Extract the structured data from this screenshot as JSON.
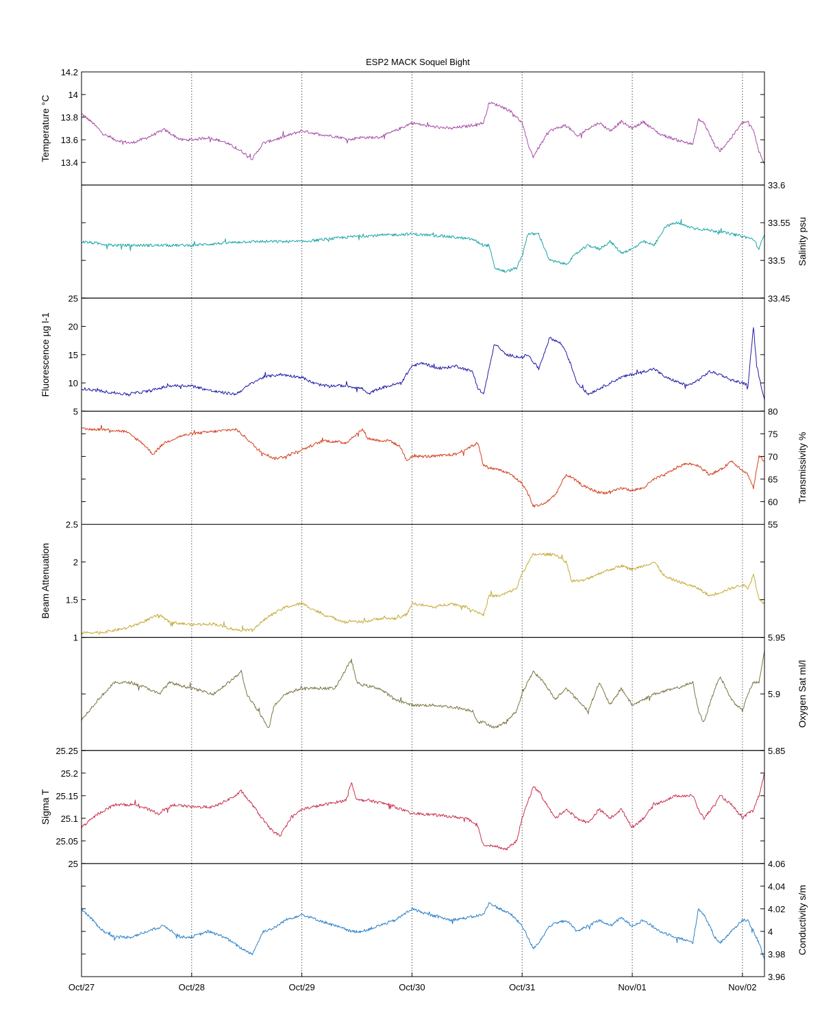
{
  "title": "ESP2 MACK  Soquel Bight",
  "x_tick_labels": [
    "Oct/27",
    "Oct/28",
    "Oct/29",
    "Oct/30",
    "Oct/31",
    "Nov/01",
    "Nov/02"
  ],
  "chart_data": [
    {
      "type": "line",
      "side": "left",
      "color": "#a64ca6",
      "ylabel": "Temperature °C",
      "ylim": [
        13.2,
        14.2
      ],
      "yticks": [
        13.4,
        13.6,
        13.8,
        14,
        14.2
      ],
      "ytick_labels": [
        "13.4",
        "13.6",
        "13.8",
        "14",
        "14.2"
      ],
      "series": [
        {
          "x_days": [
            0,
            0.1,
            0.2,
            0.3,
            0.45,
            0.6,
            0.75,
            0.9,
            1.0,
            1.15,
            1.3,
            1.45,
            1.55,
            1.65,
            1.75,
            1.85,
            2.0,
            2.15,
            2.3,
            2.45,
            2.5,
            2.55,
            2.7,
            2.85,
            3.0,
            3.15,
            3.35,
            3.5,
            3.65,
            3.7,
            3.8,
            3.9,
            4.0,
            4.05,
            4.1,
            4.15,
            4.25,
            4.4,
            4.5,
            4.6,
            4.7,
            4.8,
            4.9,
            5.0,
            5.1,
            5.25,
            5.4,
            5.55,
            5.6,
            5.65,
            5.75,
            5.8,
            5.9,
            6.0,
            6.05,
            6.1,
            6.15,
            6.2
          ],
          "values": [
            13.83,
            13.75,
            13.65,
            13.6,
            13.57,
            13.62,
            13.69,
            13.6,
            13.6,
            13.62,
            13.58,
            13.5,
            13.43,
            13.57,
            13.6,
            13.63,
            13.68,
            13.65,
            13.63,
            13.6,
            13.62,
            13.62,
            13.62,
            13.68,
            13.75,
            13.72,
            13.7,
            13.72,
            13.75,
            13.93,
            13.9,
            13.85,
            13.75,
            13.57,
            13.45,
            13.53,
            13.68,
            13.73,
            13.63,
            13.7,
            13.75,
            13.68,
            13.76,
            13.7,
            13.76,
            13.65,
            13.6,
            13.56,
            13.78,
            13.75,
            13.55,
            13.5,
            13.62,
            13.75,
            13.76,
            13.68,
            13.5,
            13.38
          ]
        }
      ]
    },
    {
      "type": "line",
      "side": "right",
      "color": "#1aa5a5",
      "ylabel": "Salinity psu",
      "ylim": [
        33.45,
        33.6
      ],
      "yticks": [
        33.45,
        33.5,
        33.55,
        33.6
      ],
      "ytick_labels": [
        "33.45",
        "33.5",
        "33.55",
        "33.6"
      ],
      "series": [
        {
          "x_days": [
            0,
            0.3,
            0.6,
            1.0,
            1.5,
            2.0,
            2.5,
            3.0,
            3.3,
            3.55,
            3.65,
            3.7,
            3.75,
            3.85,
            3.95,
            4.0,
            4.05,
            4.15,
            4.25,
            4.4,
            4.5,
            4.6,
            4.7,
            4.8,
            4.9,
            5.0,
            5.1,
            5.2,
            5.3,
            5.4,
            5.5,
            5.6,
            5.7,
            5.8,
            5.9,
            6.0,
            6.1,
            6.15,
            6.2
          ],
          "values": [
            33.525,
            33.52,
            33.52,
            33.52,
            33.525,
            33.525,
            33.532,
            33.535,
            33.532,
            33.528,
            33.52,
            33.52,
            33.49,
            33.485,
            33.49,
            33.505,
            33.535,
            33.535,
            33.5,
            33.495,
            33.51,
            33.52,
            33.515,
            33.525,
            33.51,
            33.515,
            33.525,
            33.52,
            33.545,
            33.55,
            33.545,
            33.542,
            33.54,
            33.538,
            33.535,
            33.532,
            33.528,
            33.515,
            33.535
          ]
        }
      ]
    },
    {
      "type": "line",
      "side": "left",
      "color": "#1f1aa6",
      "ylabel": "Fluorescence µg l-1",
      "ylim": [
        5,
        25
      ],
      "yticks": [
        5,
        10,
        15,
        20,
        25
      ],
      "ytick_labels": [
        "5",
        "10",
        "15",
        "20",
        "25"
      ],
      "series": [
        {
          "x_days": [
            0,
            0.2,
            0.4,
            0.6,
            0.8,
            1.0,
            1.2,
            1.4,
            1.55,
            1.65,
            1.8,
            2.0,
            2.1,
            2.2,
            2.4,
            2.55,
            2.6,
            2.7,
            2.8,
            2.9,
            3.0,
            3.1,
            3.25,
            3.4,
            3.55,
            3.6,
            3.65,
            3.75,
            3.85,
            4.0,
            4.05,
            4.15,
            4.25,
            4.35,
            4.4,
            4.5,
            4.6,
            4.7,
            4.8,
            4.9,
            5.0,
            5.1,
            5.2,
            5.3,
            5.5,
            5.6,
            5.7,
            5.8,
            5.9,
            6.0,
            6.05,
            6.1,
            6.13,
            6.2
          ],
          "values": [
            9,
            8.5,
            8,
            8.5,
            9.5,
            9.5,
            8.5,
            8,
            10,
            11,
            11.5,
            11,
            10,
            9.5,
            9.5,
            9,
            8,
            9,
            9.5,
            10,
            13,
            13.5,
            12.5,
            13,
            12,
            9,
            8,
            17,
            15,
            14.5,
            15,
            12.5,
            18,
            17,
            15.5,
            10,
            8,
            9,
            10,
            11,
            11.5,
            12,
            12.5,
            11,
            9.5,
            10.5,
            12,
            11.5,
            10.5,
            10,
            9.5,
            20,
            13,
            7
          ]
        }
      ]
    },
    {
      "type": "line",
      "side": "right",
      "color": "#d23f1c",
      "ylabel": "Transmissivity %",
      "ylim": [
        55,
        80
      ],
      "yticks": [
        55,
        60,
        65,
        70,
        75,
        80
      ],
      "ytick_labels": [
        "55",
        "60",
        "65",
        "70",
        "75",
        "80"
      ],
      "series": [
        {
          "x_days": [
            0,
            0.2,
            0.4,
            0.55,
            0.65,
            0.75,
            0.9,
            1.0,
            1.2,
            1.4,
            1.5,
            1.6,
            1.75,
            1.85,
            1.95,
            2.05,
            2.2,
            2.4,
            2.55,
            2.6,
            2.7,
            2.8,
            2.9,
            2.95,
            3.0,
            3.1,
            3.2,
            3.4,
            3.6,
            3.65,
            3.7,
            3.8,
            3.9,
            4.0,
            4.05,
            4.1,
            4.2,
            4.3,
            4.4,
            4.5,
            4.55,
            4.6,
            4.7,
            4.8,
            4.9,
            5.0,
            5.1,
            5.2,
            5.3,
            5.4,
            5.5,
            5.6,
            5.7,
            5.8,
            5.9,
            6.0,
            6.05,
            6.1,
            6.15,
            6.2
          ],
          "values": [
            76,
            76,
            75.5,
            73,
            70.5,
            73,
            74.5,
            75,
            75.5,
            76,
            74,
            71.5,
            69.5,
            70,
            71,
            72,
            73.5,
            73,
            76,
            74,
            73.5,
            73.5,
            72,
            69,
            70,
            70,
            70,
            70.5,
            73,
            68,
            67.5,
            67,
            66,
            64,
            62,
            59,
            59.5,
            61.5,
            66,
            64.5,
            63.5,
            63,
            62,
            62,
            63,
            62.5,
            63,
            65,
            66,
            67.5,
            68.5,
            68,
            66,
            67,
            69,
            67,
            66,
            63,
            70,
            69
          ]
        }
      ]
    },
    {
      "type": "line",
      "side": "left",
      "color": "#c4aa32",
      "ylabel": "Beam Attenuation",
      "ylim": [
        1,
        2.5
      ],
      "yticks": [
        1,
        1.5,
        2,
        2.5
      ],
      "ytick_labels": [
        "1",
        "1.5",
        "2",
        "2.5"
      ],
      "series": [
        {
          "x_days": [
            0,
            0.2,
            0.4,
            0.55,
            0.7,
            0.8,
            1.0,
            1.2,
            1.4,
            1.55,
            1.7,
            1.85,
            2.0,
            2.2,
            2.4,
            2.45,
            2.55,
            2.7,
            2.85,
            2.95,
            3.0,
            3.2,
            3.35,
            3.5,
            3.65,
            3.7,
            3.8,
            3.95,
            4.0,
            4.1,
            4.2,
            4.3,
            4.4,
            4.45,
            4.55,
            4.7,
            4.8,
            4.9,
            5.0,
            5.1,
            5.2,
            5.3,
            5.4,
            5.5,
            5.6,
            5.7,
            5.8,
            5.9,
            6.0,
            6.05,
            6.1,
            6.15,
            6.2
          ],
          "values": [
            1.06,
            1.07,
            1.12,
            1.2,
            1.3,
            1.2,
            1.17,
            1.18,
            1.1,
            1.1,
            1.28,
            1.4,
            1.45,
            1.3,
            1.2,
            1.22,
            1.2,
            1.25,
            1.25,
            1.3,
            1.45,
            1.4,
            1.45,
            1.4,
            1.3,
            1.55,
            1.55,
            1.65,
            1.85,
            2.1,
            2.1,
            2.1,
            2.0,
            1.75,
            1.75,
            1.85,
            1.9,
            1.95,
            1.9,
            1.95,
            2.0,
            1.8,
            1.75,
            1.7,
            1.65,
            1.55,
            1.6,
            1.65,
            1.7,
            1.65,
            1.85,
            1.5,
            1.45
          ]
        }
      ]
    },
    {
      "type": "line",
      "side": "right",
      "color": "#7a7440",
      "ylabel": "Oxygen Sat ml/l",
      "ylim": [
        5.85,
        5.95
      ],
      "yticks": [
        5.85,
        5.9,
        5.95
      ],
      "ytick_labels": [
        "5.85",
        "5.9",
        "5.95"
      ],
      "series": [
        {
          "x_days": [
            0,
            0.15,
            0.3,
            0.45,
            0.6,
            0.7,
            0.8,
            1.0,
            1.2,
            1.4,
            1.45,
            1.5,
            1.7,
            1.75,
            1.85,
            2.0,
            2.1,
            2.3,
            2.45,
            2.5,
            2.55,
            2.7,
            2.85,
            3.0,
            3.1,
            3.2,
            3.4,
            3.55,
            3.6,
            3.65,
            3.75,
            3.85,
            3.95,
            4.0,
            4.1,
            4.15,
            4.2,
            4.3,
            4.4,
            4.5,
            4.6,
            4.7,
            4.8,
            4.9,
            5.0,
            5.1,
            5.2,
            5.4,
            5.55,
            5.6,
            5.65,
            5.75,
            5.8,
            5.9,
            6.0,
            6.05,
            6.1,
            6.15,
            6.2
          ],
          "values": [
            5.877,
            5.895,
            5.91,
            5.91,
            5.905,
            5.9,
            5.91,
            5.905,
            5.9,
            5.915,
            5.92,
            5.9,
            5.87,
            5.89,
            5.9,
            5.905,
            5.905,
            5.905,
            5.93,
            5.91,
            5.908,
            5.905,
            5.895,
            5.89,
            5.89,
            5.89,
            5.888,
            5.885,
            5.875,
            5.875,
            5.87,
            5.875,
            5.885,
            5.9,
            5.92,
            5.915,
            5.91,
            5.895,
            5.905,
            5.895,
            5.885,
            5.91,
            5.89,
            5.905,
            5.89,
            5.895,
            5.9,
            5.905,
            5.91,
            5.885,
            5.875,
            5.905,
            5.915,
            5.895,
            5.885,
            5.9,
            5.91,
            5.91,
            5.938
          ]
        }
      ]
    },
    {
      "type": "line",
      "side": "left",
      "color": "#c8304d",
      "ylabel": "Sigma T",
      "ylim": [
        25,
        25.25
      ],
      "yticks": [
        25,
        25.05,
        25.1,
        25.15,
        25.2,
        25.25
      ],
      "ytick_labels": [
        "25",
        "25.05",
        "25.1",
        "25.15",
        "25.2",
        "25.25"
      ],
      "series": [
        {
          "x_days": [
            0,
            0.15,
            0.3,
            0.5,
            0.7,
            0.75,
            0.85,
            1.0,
            1.2,
            1.4,
            1.45,
            1.55,
            1.7,
            1.8,
            1.9,
            2.0,
            2.2,
            2.4,
            2.45,
            2.5,
            2.6,
            2.8,
            3.0,
            3.1,
            3.3,
            3.5,
            3.6,
            3.65,
            3.75,
            3.85,
            3.95,
            4.0,
            4.1,
            4.15,
            4.2,
            4.3,
            4.4,
            4.5,
            4.6,
            4.7,
            4.8,
            4.9,
            5.0,
            5.1,
            5.2,
            5.4,
            5.55,
            5.6,
            5.65,
            5.75,
            5.8,
            5.9,
            6.0,
            6.05,
            6.1,
            6.15,
            6.2
          ],
          "values": [
            25.08,
            25.11,
            25.13,
            25.13,
            25.11,
            25.12,
            25.13,
            25.125,
            25.125,
            25.15,
            25.16,
            25.13,
            25.08,
            25.06,
            25.1,
            25.12,
            25.13,
            25.14,
            25.18,
            25.14,
            25.14,
            25.13,
            25.11,
            25.11,
            25.105,
            25.1,
            25.08,
            25.04,
            25.04,
            25.03,
            25.05,
            25.1,
            25.17,
            25.16,
            25.14,
            25.1,
            25.12,
            25.1,
            25.09,
            25.12,
            25.1,
            25.12,
            25.08,
            25.1,
            25.13,
            25.15,
            25.15,
            25.12,
            25.1,
            25.13,
            25.15,
            25.13,
            25.1,
            25.11,
            25.12,
            25.15,
            25.2
          ]
        }
      ]
    },
    {
      "type": "line",
      "side": "right",
      "color": "#2a80c8",
      "ylabel": "Conductivity s/m",
      "ylim": [
        3.96,
        4.06
      ],
      "yticks": [
        3.96,
        3.98,
        4,
        4.02,
        4.04,
        4.06
      ],
      "ytick_labels": [
        "3.96",
        "3.98",
        "4",
        "4.02",
        "4.04",
        "4.06"
      ],
      "series": [
        {
          "x_days": [
            0,
            0.1,
            0.2,
            0.3,
            0.45,
            0.6,
            0.75,
            0.9,
            1.0,
            1.15,
            1.3,
            1.45,
            1.55,
            1.65,
            1.75,
            1.85,
            2.0,
            2.15,
            2.3,
            2.45,
            2.5,
            2.55,
            2.7,
            2.85,
            3.0,
            3.15,
            3.35,
            3.5,
            3.65,
            3.7,
            3.8,
            3.9,
            4.0,
            4.05,
            4.1,
            4.15,
            4.25,
            4.4,
            4.5,
            4.6,
            4.7,
            4.8,
            4.9,
            5.0,
            5.1,
            5.25,
            5.4,
            5.55,
            5.6,
            5.65,
            5.75,
            5.8,
            5.9,
            6.0,
            6.05,
            6.1,
            6.15,
            6.2
          ],
          "values": [
            4.02,
            4.01,
            4.0,
            3.995,
            3.995,
            4.0,
            4.005,
            3.995,
            3.995,
            4.0,
            3.995,
            3.985,
            3.98,
            4.0,
            4.003,
            4.01,
            4.015,
            4.01,
            4.005,
            4.0,
            4.0,
            4.0,
            4.005,
            4.01,
            4.02,
            4.015,
            4.01,
            4.012,
            4.015,
            4.025,
            4.02,
            4.015,
            4.005,
            3.995,
            3.985,
            3.99,
            4.005,
            4.01,
            4.0,
            4.005,
            4.01,
            4.005,
            4.012,
            4.005,
            4.01,
            4.0,
            3.995,
            3.99,
            4.02,
            4.015,
            3.995,
            3.99,
            4.0,
            4.01,
            4.01,
            4.0,
            3.99,
            3.975
          ]
        }
      ]
    }
  ]
}
